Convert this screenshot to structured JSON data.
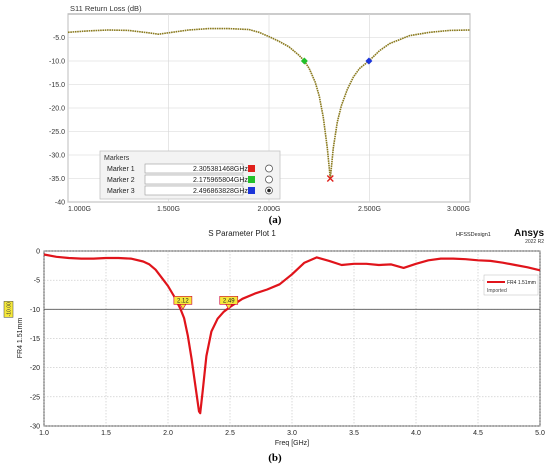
{
  "chart_data": [
    {
      "panel_label": "(a)",
      "type": "line",
      "title": "S11 Return Loss (dB)",
      "xlim": [
        1.0,
        3.0
      ],
      "ylim": [
        -40,
        0
      ],
      "x_ticks": [
        1.0,
        1.5,
        2.0,
        2.5,
        3.0
      ],
      "x_tick_labels": [
        "1.000G",
        "1.500G",
        "2.000G",
        "2.500G",
        "3.000G"
      ],
      "y_ticks": [
        -5,
        -10,
        -15,
        -20,
        -25,
        -30,
        -35,
        -40
      ],
      "y_tick_labels": [
        "-5.0",
        "-10.0",
        "-15.0",
        "-20.0",
        "-25.0",
        "-30.0",
        "-35.0",
        "-40"
      ],
      "grid": true,
      "line_color": "#8a7a1e",
      "series": [
        {
          "x": [
            1.0,
            1.1,
            1.2,
            1.3,
            1.4,
            1.45,
            1.5,
            1.6,
            1.7,
            1.8,
            1.9,
            1.95,
            2.0,
            2.05,
            2.1,
            2.15,
            2.176,
            2.2,
            2.23,
            2.25,
            2.27,
            2.29,
            2.305,
            2.32,
            2.34,
            2.36,
            2.39,
            2.42,
            2.45,
            2.497,
            2.55,
            2.6,
            2.7,
            2.8,
            2.9,
            3.0
          ],
          "y": [
            -3.9,
            -3.6,
            -3.4,
            -3.5,
            -4.0,
            -4.3,
            -4.0,
            -3.4,
            -3.1,
            -3.1,
            -3.3,
            -3.9,
            -4.8,
            -5.8,
            -7.0,
            -8.8,
            -10.0,
            -11.6,
            -14.5,
            -17.5,
            -22.0,
            -28.5,
            -35.0,
            -28.5,
            -23.0,
            -19.5,
            -16.0,
            -13.4,
            -11.6,
            -10.0,
            -7.8,
            -6.3,
            -4.6,
            -3.9,
            -3.5,
            -3.4
          ]
        }
      ],
      "markers_panel": {
        "title": "Markers",
        "rows": [
          {
            "name": "Marker 1",
            "value": "2.305381468GHz",
            "color": "#e0201b",
            "selected": false
          },
          {
            "name": "Marker 2",
            "value": "2.175965804GHz",
            "color": "#22c02a",
            "selected": false
          },
          {
            "name": "Marker 3",
            "value": "2.496863828GHz",
            "color": "#1c35d9",
            "selected": true
          }
        ]
      },
      "markers": [
        {
          "x": 2.305,
          "y": -35.0,
          "color": "#e0201b"
        },
        {
          "x": 2.176,
          "y": -10.0,
          "color": "#22c02a"
        },
        {
          "x": 2.497,
          "y": -10.0,
          "color": "#1c35d9"
        }
      ]
    },
    {
      "panel_label": "(b)",
      "type": "line",
      "title": "S Parameter Plot 1",
      "design_label": "HFSSDesign1",
      "brand": "Ansys",
      "version": "2022 R2",
      "xlabel": "Freq [GHz]",
      "ylabel": "FR4 1.51mm",
      "xlim": [
        1.0,
        5.0
      ],
      "ylim": [
        -30,
        0
      ],
      "x_ticks": [
        1.0,
        1.5,
        2.0,
        2.5,
        3.0,
        3.5,
        4.0,
        4.5,
        5.0
      ],
      "x_tick_labels": [
        "1.0",
        "1.5",
        "2.0",
        "2.5",
        "3.0",
        "3.5",
        "4.0",
        "4.5",
        "5.0"
      ],
      "y_ticks": [
        0,
        -5,
        -10,
        -15,
        -20,
        -25,
        -30
      ],
      "y_tick_labels": [
        "0",
        "-5",
        "-10",
        "-15",
        "-20",
        "-25",
        "-30"
      ],
      "reference_line": {
        "y": -10.0,
        "label": "-10.00"
      },
      "legend": {
        "entry": "FR4 1.51mm",
        "subtitle": "Imported"
      },
      "grid": true,
      "line_color": "#e0141b",
      "series": [
        {
          "name": "FR4 1.51mm",
          "x": [
            1.0,
            1.1,
            1.2,
            1.3,
            1.4,
            1.5,
            1.6,
            1.7,
            1.8,
            1.85,
            1.9,
            1.95,
            2.0,
            2.05,
            2.1,
            2.13,
            2.16,
            2.19,
            2.22,
            2.25,
            2.26,
            2.28,
            2.31,
            2.35,
            2.4,
            2.45,
            2.5,
            2.6,
            2.7,
            2.8,
            2.9,
            3.0,
            3.1,
            3.2,
            3.3,
            3.4,
            3.5,
            3.6,
            3.7,
            3.8,
            3.9,
            4.0,
            4.1,
            4.2,
            4.3,
            4.4,
            4.5,
            4.6,
            4.7,
            4.8,
            4.9,
            5.0
          ],
          "y": [
            -0.6,
            -1.0,
            -1.2,
            -1.3,
            -1.3,
            -1.2,
            -1.2,
            -1.3,
            -1.8,
            -2.3,
            -3.2,
            -4.6,
            -6.0,
            -7.8,
            -9.9,
            -11.5,
            -14.5,
            -18.5,
            -23.0,
            -27.5,
            -27.8,
            -24.0,
            -18.0,
            -13.8,
            -11.6,
            -10.4,
            -9.6,
            -8.2,
            -7.3,
            -6.6,
            -5.7,
            -4.0,
            -2.0,
            -1.1,
            -1.7,
            -2.4,
            -2.2,
            -2.2,
            -2.4,
            -2.3,
            -2.9,
            -2.2,
            -1.6,
            -1.3,
            -1.3,
            -1.4,
            -1.6,
            -1.7,
            -2.0,
            -2.4,
            -2.8,
            -3.3
          ]
        }
      ],
      "markers": [
        {
          "label": "2.12",
          "x": 2.12,
          "y": -10.0
        },
        {
          "label": "2.49",
          "x": 2.49,
          "y": -10.0
        }
      ]
    }
  ]
}
